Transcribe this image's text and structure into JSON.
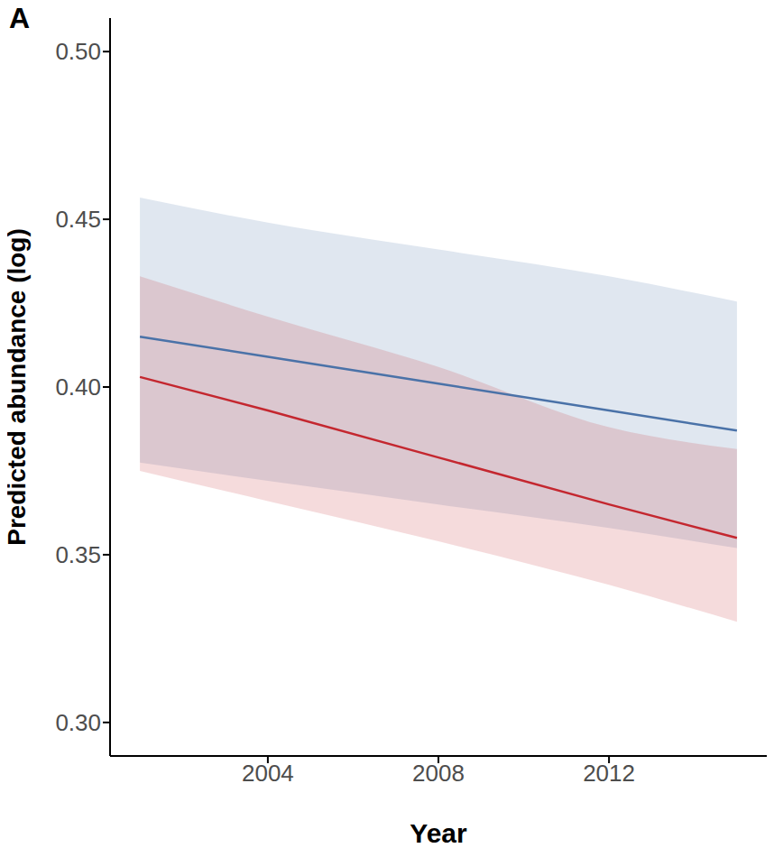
{
  "chart_data": {
    "type": "line",
    "title": "A",
    "x_label": "Year",
    "y_label": "Predicted abundance (log)",
    "x": [
      2001,
      2004,
      2008,
      2012,
      2015
    ],
    "xlim": [
      2000.3,
      2015.7
    ],
    "xticks": [
      2004,
      2008,
      2012
    ],
    "ylim": [
      0.29,
      0.51
    ],
    "yticks": [
      {
        "value": 0.3,
        "label": "0.30"
      },
      0.35,
      {
        "value": 0.4,
        "label": "0.40"
      },
      0.45,
      {
        "value": 0.5,
        "label": "0.50"
      }
    ],
    "grid": false,
    "series": [
      {
        "color": "#4a72a8",
        "values": [
          0.415,
          0.409,
          0.401,
          0.393,
          0.387
        ],
        "lower": [
          0.3775,
          0.372,
          0.365,
          0.358,
          0.352
        ],
        "upper": [
          0.4565,
          0.449,
          0.441,
          0.433,
          0.4255
        ]
      },
      {
        "color": "#c4272f",
        "values": [
          0.403,
          0.393,
          0.379,
          0.365,
          0.355
        ],
        "lower": [
          0.375,
          0.366,
          0.354,
          0.341,
          0.33
        ],
        "upper": [
          0.433,
          0.421,
          0.406,
          0.388,
          0.3815
        ]
      }
    ]
  }
}
